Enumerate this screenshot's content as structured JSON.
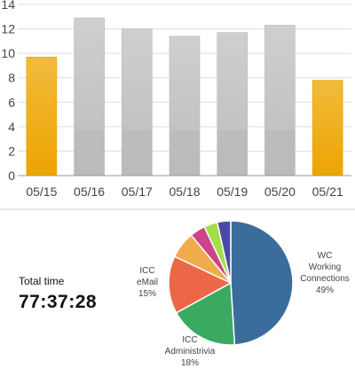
{
  "chart_data": [
    {
      "type": "bar",
      "categories": [
        "05/15",
        "05/16",
        "05/17",
        "05/18",
        "05/19",
        "05/20",
        "05/21"
      ],
      "values": [
        9.7,
        12.9,
        12.0,
        11.4,
        11.7,
        12.3,
        7.8
      ],
      "ylim": [
        0,
        14
      ],
      "yticks": [
        0,
        2,
        4,
        6,
        8,
        10,
        12,
        14
      ],
      "grid": true,
      "highlighted": [
        "05/15",
        "05/21"
      ],
      "colors": {
        "highlight": "#f0b123",
        "normal": "#c8c8c8"
      }
    },
    {
      "type": "pie",
      "slices": [
        {
          "label": [
            "WC",
            "Working",
            "Connections",
            "49%"
          ],
          "value": 49,
          "color": "#3a6d9c"
        },
        {
          "label": [
            "ICC",
            "Administrivia",
            "18%"
          ],
          "value": 18,
          "color": "#3aaa63"
        },
        {
          "label": [
            "ICC",
            "eMail",
            "15%"
          ],
          "value": 15,
          "color": "#ec6748"
        },
        {
          "label": [],
          "value": 7,
          "color": "#f0ab4b"
        },
        {
          "label": [],
          "value": 4,
          "color": "#cc4488"
        },
        {
          "label": [],
          "value": 3.5,
          "color": "#a3df4a"
        },
        {
          "label": [],
          "value": 3.5,
          "color": "#4a4aa6"
        }
      ]
    }
  ],
  "summary": {
    "total_label": "Total time",
    "total_value": "77:37:28"
  }
}
